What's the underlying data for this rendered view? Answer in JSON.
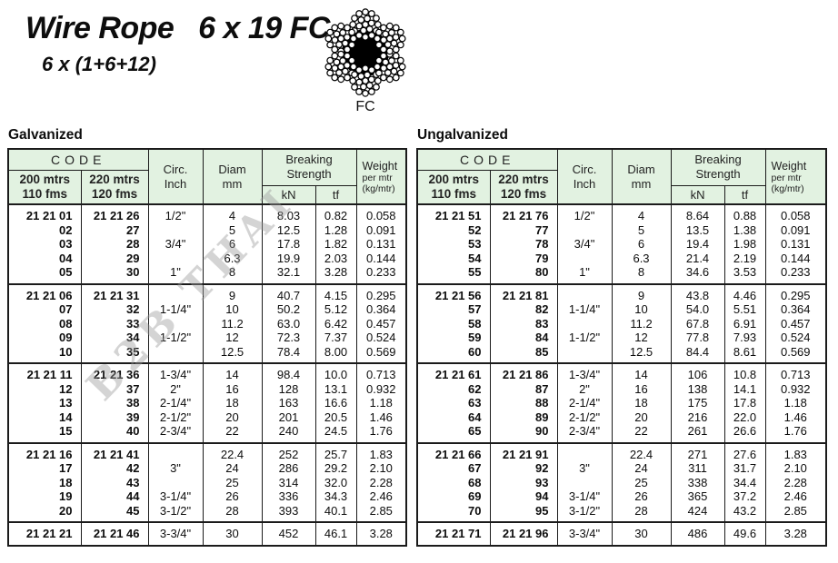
{
  "title": "Wire Rope   6 x 19 FC",
  "subtitle": "6 x (1+6+12)",
  "rope_diagram": {
    "icon": "wire-rope-cross-section-icon",
    "label": "FC"
  },
  "watermark": "B2B THAI",
  "colors": {
    "header_bg": "#e2f2e1",
    "border": "#1b1b1b",
    "watermark": "#9a9a9a"
  },
  "table_header": {
    "code": "CODE",
    "code_col1": "200 mtrs\n110 fms",
    "code_col2": "220 mtrs\n120 fms",
    "circ": "Circ.\nInch",
    "diam": "Diam\nmm",
    "breaking": "Breaking\nStrength",
    "kn": "kN",
    "tf": "tf",
    "weight": "Weight",
    "weight_sub": "per mtr\n(kg/mtr)"
  },
  "tables": [
    {
      "heading": "Galvanized",
      "groups": [
        [
          [
            "21 21 01",
            "21 21 26",
            "1/2\"",
            "4",
            "8.03",
            "0.82",
            "0.058"
          ],
          [
            "02",
            "27",
            "",
            "5",
            "12.5",
            "1.28",
            "0.091"
          ],
          [
            "03",
            "28",
            "3/4\"",
            "6",
            "17.8",
            "1.82",
            "0.131"
          ],
          [
            "04",
            "29",
            "",
            "6.3",
            "19.9",
            "2.03",
            "0.144"
          ],
          [
            "05",
            "30",
            "1\"",
            "8",
            "32.1",
            "3.28",
            "0.233"
          ]
        ],
        [
          [
            "21 21 06",
            "21 21 31",
            "",
            "9",
            "40.7",
            "4.15",
            "0.295"
          ],
          [
            "07",
            "32",
            "1-1/4\"",
            "10",
            "50.2",
            "5.12",
            "0.364"
          ],
          [
            "08",
            "33",
            "",
            "11.2",
            "63.0",
            "6.42",
            "0.457"
          ],
          [
            "09",
            "34",
            "1-1/2\"",
            "12",
            "72.3",
            "7.37",
            "0.524"
          ],
          [
            "10",
            "35",
            "",
            "12.5",
            "78.4",
            "8.00",
            "0.569"
          ]
        ],
        [
          [
            "21 21 11",
            "21 21 36",
            "1-3/4\"",
            "14",
            "98.4",
            "10.0",
            "0.713"
          ],
          [
            "12",
            "37",
            "2\"",
            "16",
            "128",
            "13.1",
            "0.932"
          ],
          [
            "13",
            "38",
            "2-1/4\"",
            "18",
            "163",
            "16.6",
            "1.18"
          ],
          [
            "14",
            "39",
            "2-1/2\"",
            "20",
            "201",
            "20.5",
            "1.46"
          ],
          [
            "15",
            "40",
            "2-3/4\"",
            "22",
            "240",
            "24.5",
            "1.76"
          ]
        ],
        [
          [
            "21 21 16",
            "21 21 41",
            "",
            "22.4",
            "252",
            "25.7",
            "1.83"
          ],
          [
            "17",
            "42",
            "3\"",
            "24",
            "286",
            "29.2",
            "2.10"
          ],
          [
            "18",
            "43",
            "",
            "25",
            "314",
            "32.0",
            "2.28"
          ],
          [
            "19",
            "44",
            "3-1/4\"",
            "26",
            "336",
            "34.3",
            "2.46"
          ],
          [
            "20",
            "45",
            "3-1/2\"",
            "28",
            "393",
            "40.1",
            "2.85"
          ]
        ],
        [
          [
            "21 21 21",
            "21 21 46",
            "3-3/4\"",
            "30",
            "452",
            "46.1",
            "3.28"
          ]
        ]
      ]
    },
    {
      "heading": "Ungalvanized",
      "groups": [
        [
          [
            "21 21 51",
            "21 21 76",
            "1/2\"",
            "4",
            "8.64",
            "0.88",
            "0.058"
          ],
          [
            "52",
            "77",
            "",
            "5",
            "13.5",
            "1.38",
            "0.091"
          ],
          [
            "53",
            "78",
            "3/4\"",
            "6",
            "19.4",
            "1.98",
            "0.131"
          ],
          [
            "54",
            "79",
            "",
            "6.3",
            "21.4",
            "2.19",
            "0.144"
          ],
          [
            "55",
            "80",
            "1\"",
            "8",
            "34.6",
            "3.53",
            "0.233"
          ]
        ],
        [
          [
            "21 21 56",
            "21 21 81",
            "",
            "9",
            "43.8",
            "4.46",
            "0.295"
          ],
          [
            "57",
            "82",
            "1-1/4\"",
            "10",
            "54.0",
            "5.51",
            "0.364"
          ],
          [
            "58",
            "83",
            "",
            "11.2",
            "67.8",
            "6.91",
            "0.457"
          ],
          [
            "59",
            "84",
            "1-1/2\"",
            "12",
            "77.8",
            "7.93",
            "0.524"
          ],
          [
            "60",
            "85",
            "",
            "12.5",
            "84.4",
            "8.61",
            "0.569"
          ]
        ],
        [
          [
            "21 21 61",
            "21 21 86",
            "1-3/4\"",
            "14",
            "106",
            "10.8",
            "0.713"
          ],
          [
            "62",
            "87",
            "2\"",
            "16",
            "138",
            "14.1",
            "0.932"
          ],
          [
            "63",
            "88",
            "2-1/4\"",
            "18",
            "175",
            "17.8",
            "1.18"
          ],
          [
            "64",
            "89",
            "2-1/2\"",
            "20",
            "216",
            "22.0",
            "1.46"
          ],
          [
            "65",
            "90",
            "2-3/4\"",
            "22",
            "261",
            "26.6",
            "1.76"
          ]
        ],
        [
          [
            "21 21 66",
            "21 21 91",
            "",
            "22.4",
            "271",
            "27.6",
            "1.83"
          ],
          [
            "67",
            "92",
            "3\"",
            "24",
            "311",
            "31.7",
            "2.10"
          ],
          [
            "68",
            "93",
            "",
            "25",
            "338",
            "34.4",
            "2.28"
          ],
          [
            "69",
            "94",
            "3-1/4\"",
            "26",
            "365",
            "37.2",
            "2.46"
          ],
          [
            "70",
            "95",
            "3-1/2\"",
            "28",
            "424",
            "43.2",
            "2.85"
          ]
        ],
        [
          [
            "21 21 71",
            "21 21 96",
            "3-3/4\"",
            "30",
            "486",
            "49.6",
            "3.28"
          ]
        ]
      ]
    }
  ]
}
